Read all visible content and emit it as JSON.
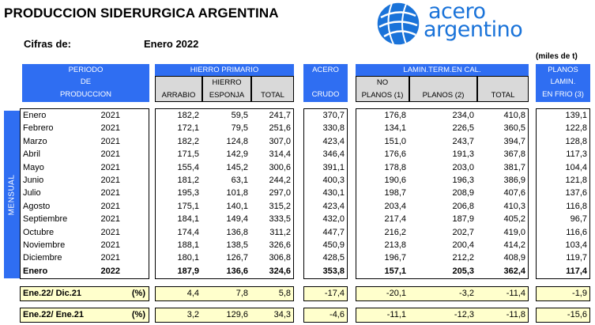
{
  "title": "PRODUCCION SIDERURGICA ARGENTINA",
  "cifras_label": "Cifras de:",
  "cifras_value": "Enero 2022",
  "units": "(miles de t)",
  "logo": {
    "line1": "acero",
    "line2": "argentino",
    "brand_color": "#1a73d9"
  },
  "side_label": "MENSUAL",
  "headers": {
    "periodo": [
      "PERIODO",
      "DE",
      "PRODUCCION"
    ],
    "hierro_primario": "HIERRO PRIMARIO",
    "arrabio": "ARRABIO",
    "hierro_esponja": [
      "HIERRO",
      "ESPONJA"
    ],
    "total": "TOTAL",
    "acero": "ACERO",
    "crudo": "CRUDO",
    "lamin": "LAMIN.TERM.EN CAL.",
    "no_planos": [
      "NO",
      "PLANOS (1)"
    ],
    "planos": "PLANOS (2)",
    "total2": "TOTAL",
    "planos_lamin": [
      "PLANOS",
      "LAMIN.",
      "EN FRIO (3)"
    ]
  },
  "rows": [
    {
      "month": "Enero",
      "year": "2021",
      "arrabio": "182,2",
      "esponja": "59,5",
      "total": "241,7",
      "crudo": "370,7",
      "no_planos": "176,8",
      "planos": "234,0",
      "total2": "410,8",
      "frio": "139,1"
    },
    {
      "month": "Febrero",
      "year": "2021",
      "arrabio": "172,1",
      "esponja": "79,5",
      "total": "251,6",
      "crudo": "330,8",
      "no_planos": "134,1",
      "planos": "226,5",
      "total2": "360,5",
      "frio": "122,8"
    },
    {
      "month": "Marzo",
      "year": "2021",
      "arrabio": "182,2",
      "esponja": "124,8",
      "total": "307,0",
      "crudo": "423,4",
      "no_planos": "151,0",
      "planos": "243,7",
      "total2": "394,7",
      "frio": "128,8"
    },
    {
      "month": "Abril",
      "year": "2021",
      "arrabio": "171,5",
      "esponja": "142,9",
      "total": "314,4",
      "crudo": "346,4",
      "no_planos": "176,6",
      "planos": "191,3",
      "total2": "367,8",
      "frio": "117,3"
    },
    {
      "month": "Mayo",
      "year": "2021",
      "arrabio": "155,4",
      "esponja": "145,2",
      "total": "300,6",
      "crudo": "391,1",
      "no_planos": "178,8",
      "planos": "203,0",
      "total2": "381,7",
      "frio": "104,4"
    },
    {
      "month": "Junio",
      "year": "2021",
      "arrabio": "181,2",
      "esponja": "63,1",
      "total": "244,2",
      "crudo": "400,3",
      "no_planos": "190,6",
      "planos": "196,3",
      "total2": "386,9",
      "frio": "121,8"
    },
    {
      "month": "Julio",
      "year": "2021",
      "arrabio": "195,3",
      "esponja": "101,8",
      "total": "297,0",
      "crudo": "430,1",
      "no_planos": "198,7",
      "planos": "208,9",
      "total2": "407,6",
      "frio": "137,6"
    },
    {
      "month": "Agosto",
      "year": "2021",
      "arrabio": "175,1",
      "esponja": "140,1",
      "total": "315,2",
      "crudo": "423,4",
      "no_planos": "203,4",
      "planos": "206,8",
      "total2": "410,3",
      "frio": "116,8"
    },
    {
      "month": "Septiembre",
      "year": "2021",
      "arrabio": "184,1",
      "esponja": "149,4",
      "total": "333,5",
      "crudo": "432,0",
      "no_planos": "217,4",
      "planos": "187,9",
      "total2": "405,2",
      "frio": "96,7"
    },
    {
      "month": "Octubre",
      "year": "2021",
      "arrabio": "174,4",
      "esponja": "136,8",
      "total": "311,2",
      "crudo": "447,7",
      "no_planos": "216,2",
      "planos": "202,7",
      "total2": "419,0",
      "frio": "116,6"
    },
    {
      "month": "Noviembre",
      "year": "2021",
      "arrabio": "188,1",
      "esponja": "138,5",
      "total": "326,6",
      "crudo": "450,9",
      "no_planos": "213,8",
      "planos": "200,4",
      "total2": "414,2",
      "frio": "103,4"
    },
    {
      "month": "Diciembre",
      "year": "2021",
      "arrabio": "180,1",
      "esponja": "126,7",
      "total": "306,8",
      "crudo": "428,5",
      "no_planos": "196,7",
      "planos": "212,2",
      "total2": "408,9",
      "frio": "119,7"
    },
    {
      "month": "Enero",
      "year": "2022",
      "arrabio": "187,9",
      "esponja": "136,6",
      "total": "324,6",
      "crudo": "353,8",
      "no_planos": "157,1",
      "planos": "205,3",
      "total2": "362,4",
      "frio": "117,4",
      "bold": true
    }
  ],
  "summary": [
    {
      "label": "Ene.22/ Dic.21",
      "unit": "(%)",
      "arrabio": "4,4",
      "esponja": "7,8",
      "total": "5,8",
      "crudo": "-17,4",
      "no_planos": "-20,1",
      "planos": "-3,2",
      "total2": "-11,4",
      "frio": "-1,9"
    },
    {
      "label": "Ene.22/ Ene.21",
      "unit": "(%)",
      "arrabio": "3,2",
      "esponja": "129,6",
      "total": "34,3",
      "crudo": "-4,6",
      "no_planos": "-11,1",
      "planos": "-12,3",
      "total2": "-11,8",
      "frio": "-15,6"
    }
  ]
}
